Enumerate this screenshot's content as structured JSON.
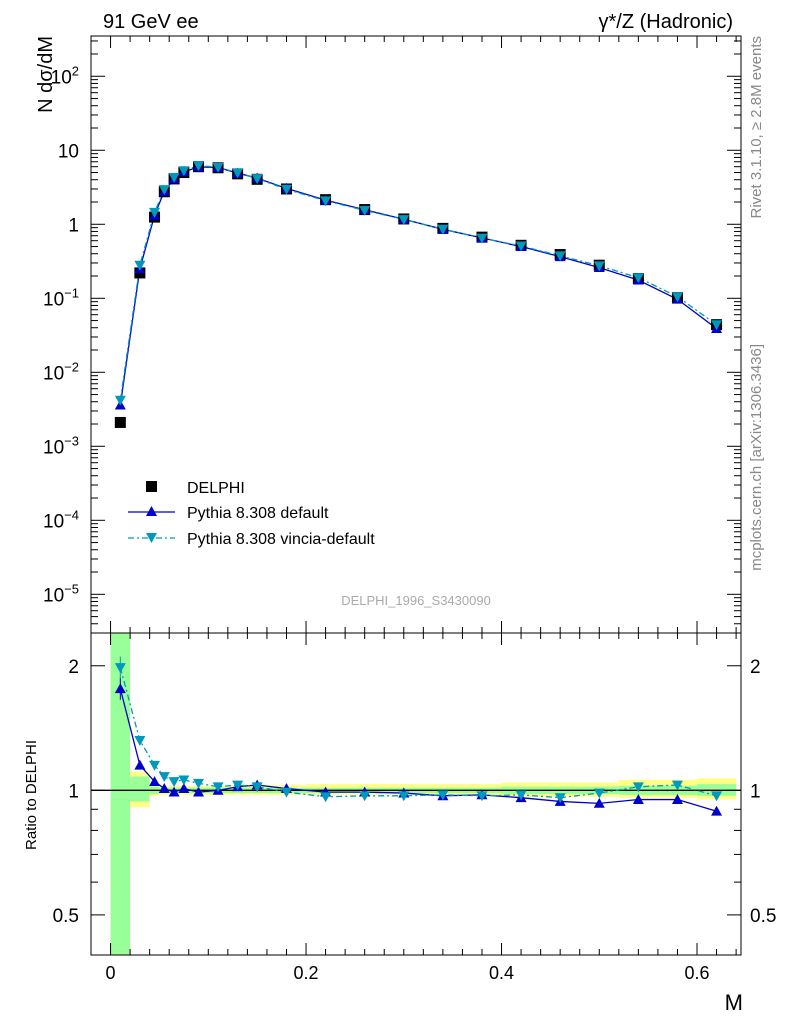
{
  "header": {
    "left": "91 GeV ee",
    "right_prefix": "γ*/Z",
    "right_suffix": " (Hadronic)"
  },
  "side_labels": {
    "rivet": "Rivet 3.1.10, ≥ 2.8M events",
    "mcplots": "mcplots.cern.ch [arXiv:1306.3436]"
  },
  "analysis_label": "DELPHI_1996_S3430090",
  "legend": {
    "data": "DELPHI",
    "mc1": "Pythia 8.308 default",
    "mc2": "Pythia 8.308 vincia-default"
  },
  "colors": {
    "data": "#000000",
    "mc1": "#0000cc",
    "mc2": "#0099bb",
    "band_stat": "#99ff99",
    "band_total": "#ffff88"
  },
  "chart_data": [
    {
      "type": "line",
      "panel": "main",
      "ylabel": "N dσ/dM",
      "yscale": "log",
      "ylim": [
        3e-06,
        350
      ],
      "xlim": [
        -0.02,
        0.645
      ],
      "yticks": [
        {
          "v": 1e-05,
          "base": "10",
          "exp": "−5"
        },
        {
          "v": 0.0001,
          "base": "10",
          "exp": "−4"
        },
        {
          "v": 0.001,
          "base": "10",
          "exp": "−3"
        },
        {
          "v": 0.01,
          "base": "10",
          "exp": "−2"
        },
        {
          "v": 0.1,
          "base": "10",
          "exp": "−1"
        },
        {
          "v": 1,
          "base": "1",
          "exp": ""
        },
        {
          "v": 10,
          "base": "10",
          "exp": ""
        },
        {
          "v": 100,
          "base": "10",
          "exp": "2"
        }
      ],
      "x": [
        0.01,
        0.03,
        0.045,
        0.055,
        0.065,
        0.075,
        0.09,
        0.11,
        0.13,
        0.15,
        0.18,
        0.22,
        0.26,
        0.3,
        0.34,
        0.38,
        0.42,
        0.46,
        0.5,
        0.54,
        0.58,
        0.62
      ],
      "series": [
        {
          "name": "DELPHI",
          "key": "data",
          "marker": "square",
          "values": [
            0.0021,
            0.22,
            1.25,
            2.75,
            4.1,
            5.0,
            6.0,
            5.8,
            4.8,
            4.05,
            3.0,
            2.15,
            1.58,
            1.18,
            0.88,
            0.67,
            0.52,
            0.39,
            0.28,
            0.185,
            0.102,
            0.044
          ]
        },
        {
          "name": "Pythia 8.308 default",
          "key": "mc1",
          "marker": "triangle-up",
          "dash": "",
          "values": [
            0.0036,
            0.25,
            1.32,
            2.8,
            4.08,
            5.1,
            5.95,
            5.85,
            4.92,
            4.2,
            3.05,
            2.12,
            1.57,
            1.17,
            0.855,
            0.655,
            0.5,
            0.365,
            0.26,
            0.176,
            0.097,
            0.039
          ]
        },
        {
          "name": "Pythia 8.308 vincia-default",
          "key": "mc2",
          "marker": "triangle-down",
          "dash": "6,3,2,3",
          "values": [
            0.0042,
            0.28,
            1.45,
            2.95,
            4.3,
            5.3,
            6.2,
            5.9,
            4.95,
            4.15,
            2.97,
            2.08,
            1.54,
            1.16,
            0.86,
            0.65,
            0.51,
            0.375,
            0.275,
            0.19,
            0.105,
            0.044
          ]
        }
      ]
    },
    {
      "type": "line",
      "panel": "ratio",
      "xlabel": "M",
      "ylabel": "Ratio to DELPHI",
      "yscale": "log",
      "ylim": [
        0.4,
        2.4
      ],
      "xlim": [
        -0.02,
        0.645
      ],
      "yticks": [
        {
          "v": 0.5,
          "label": "0.5"
        },
        {
          "v": 1,
          "label": "1"
        },
        {
          "v": 2,
          "label": "2"
        }
      ],
      "xticks": [
        {
          "v": 0,
          "label": "0"
        },
        {
          "v": 0.2,
          "label": "0.2"
        },
        {
          "v": 0.4,
          "label": "0.4"
        },
        {
          "v": 0.6,
          "label": "0.6"
        }
      ],
      "x": [
        0.01,
        0.03,
        0.045,
        0.055,
        0.065,
        0.075,
        0.09,
        0.11,
        0.13,
        0.15,
        0.18,
        0.22,
        0.26,
        0.3,
        0.34,
        0.38,
        0.42,
        0.46,
        0.5,
        0.54,
        0.58,
        0.62
      ],
      "series": [
        {
          "name": "Pythia 8.308 default",
          "key": "mc1",
          "marker": "triangle-up",
          "values": [
            1.76,
            1.15,
            1.05,
            1.01,
            0.99,
            1.01,
            0.99,
            1.0,
            1.02,
            1.03,
            1.01,
            0.99,
            0.99,
            0.985,
            0.97,
            0.975,
            0.96,
            0.94,
            0.93,
            0.95,
            0.95,
            0.89
          ]
        },
        {
          "name": "Pythia 8.308 vincia-default",
          "key": "mc2",
          "marker": "triangle-down",
          "values": [
            1.98,
            1.32,
            1.15,
            1.08,
            1.05,
            1.06,
            1.04,
            1.02,
            1.03,
            1.02,
            0.99,
            0.965,
            0.97,
            0.97,
            0.975,
            0.97,
            0.975,
            0.96,
            0.985,
            1.02,
            1.03,
            0.97
          ]
        }
      ],
      "bands": [
        {
          "x0": 0.0,
          "x1": 0.02,
          "stat": [
            0.3,
            2.4
          ],
          "total": [
            0.3,
            2.4
          ]
        },
        {
          "x0": 0.02,
          "x1": 0.04,
          "stat": [
            0.94,
            1.08
          ],
          "total": [
            0.91,
            1.11
          ]
        },
        {
          "x0": 0.04,
          "x1": 0.05,
          "stat": [
            0.98,
            1.02
          ],
          "total": [
            0.97,
            1.03
          ]
        },
        {
          "x0": 0.05,
          "x1": 0.12,
          "stat": [
            0.985,
            1.015
          ],
          "total": [
            0.975,
            1.025
          ]
        },
        {
          "x0": 0.12,
          "x1": 0.2,
          "stat": [
            0.985,
            1.015
          ],
          "total": [
            0.975,
            1.03
          ]
        },
        {
          "x0": 0.2,
          "x1": 0.4,
          "stat": [
            0.985,
            1.015
          ],
          "total": [
            0.975,
            1.035
          ]
        },
        {
          "x0": 0.4,
          "x1": 0.52,
          "stat": [
            0.98,
            1.02
          ],
          "total": [
            0.965,
            1.045
          ]
        },
        {
          "x0": 0.52,
          "x1": 0.6,
          "stat": [
            0.975,
            1.025
          ],
          "total": [
            0.96,
            1.06
          ]
        },
        {
          "x0": 0.6,
          "x1": 0.64,
          "stat": [
            0.97,
            1.035
          ],
          "total": [
            0.95,
            1.07
          ]
        }
      ]
    }
  ]
}
